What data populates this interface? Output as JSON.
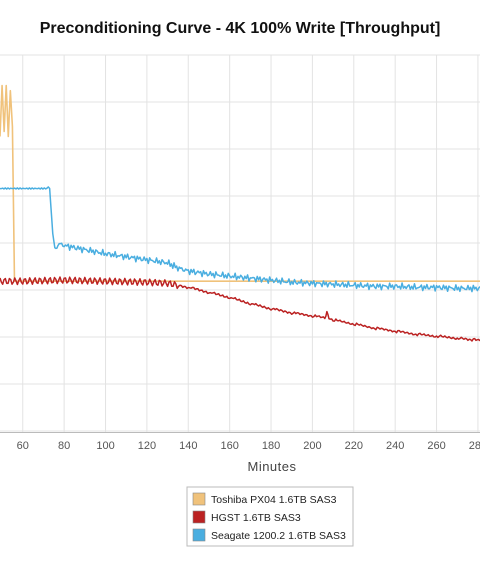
{
  "chart_data": {
    "type": "line",
    "title": "Preconditioning Curve - 4K 100% Write [Throughput]",
    "xlabel": "Minutes",
    "ylabel": "",
    "x_ticks": [
      60,
      80,
      100,
      120,
      140,
      160,
      180,
      200,
      220,
      240,
      260,
      280
    ],
    "xlim": [
      49,
      281
    ],
    "grid": true,
    "legend_position": "bottom-center",
    "series": [
      {
        "name": "Toshiba PX04 1.6TB SAS3",
        "color": "#f0c27b",
        "x": [
          49,
          50,
          51,
          52,
          53,
          54,
          55,
          56,
          60,
          80,
          100,
          150,
          200,
          250,
          281
        ],
        "y": [
          290,
          340,
          295,
          340,
          290,
          335,
          300,
          148,
          148,
          148,
          148,
          148,
          148,
          148,
          148
        ]
      },
      {
        "name": "HGST 1.6TB SAS3",
        "color": "#bb2222",
        "x": [
          49,
          60,
          80,
          100,
          120,
          130,
          140,
          150,
          160,
          170,
          180,
          190,
          200,
          206,
          207,
          208,
          210,
          220,
          230,
          240,
          250,
          260,
          270,
          281
        ],
        "y": [
          148,
          148,
          149,
          148,
          147,
          146,
          142,
          137,
          132,
          126,
          121,
          117,
          114,
          112,
          117,
          112,
          110,
          106,
          102,
          99,
          96,
          94,
          92,
          90
        ]
      },
      {
        "name": "Seagate 1200.2 1.6TB SAS3",
        "color": "#4aaee0",
        "x": [
          49,
          60,
          73,
          74,
          75,
          76,
          77,
          80,
          90,
          100,
          110,
          120,
          130,
          135,
          140,
          150,
          160,
          170,
          180,
          190,
          200,
          210,
          220,
          230,
          240,
          250,
          260,
          270,
          281
        ],
        "y": [
          239,
          239,
          239,
          210,
          185,
          178,
          185,
          183,
          179,
          175,
          172,
          169,
          166,
          161,
          158,
          155,
          153,
          151,
          149,
          147,
          146,
          145,
          144,
          143,
          143,
          142,
          142,
          141,
          141
        ]
      }
    ]
  }
}
